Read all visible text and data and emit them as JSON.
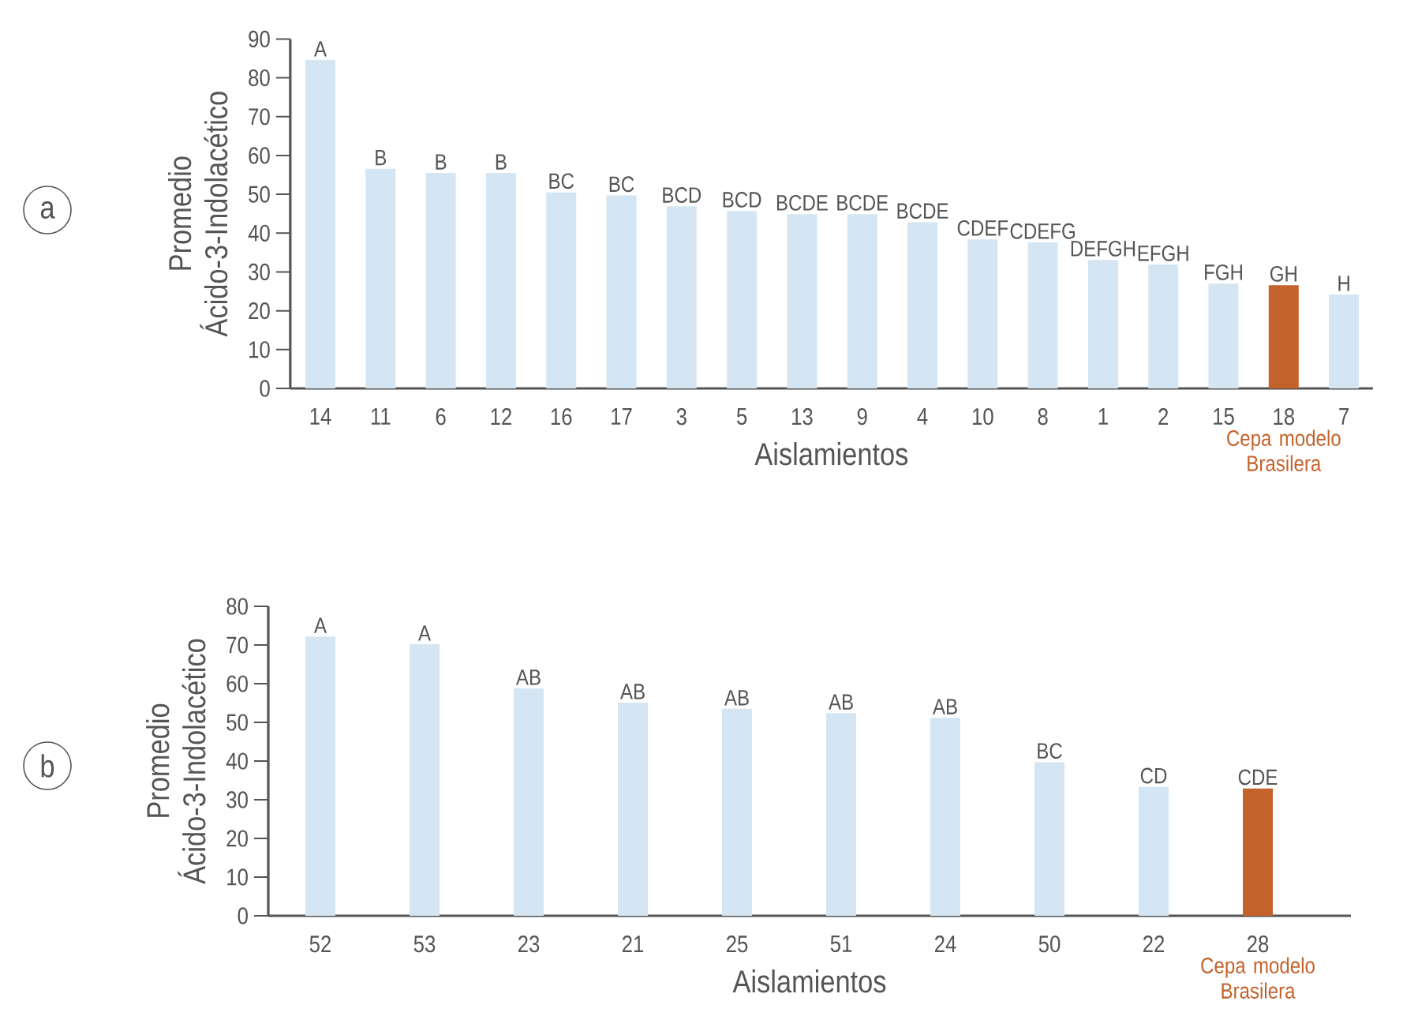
{
  "chart_data": [
    {
      "type": "bar",
      "xlabel": "Aislamientos",
      "ylabel": "Promedio Ácido-3-Indolacético",
      "categories": [
        "14",
        "11",
        "6",
        "12",
        "16",
        "17",
        "3",
        "5",
        "13",
        "9",
        "4",
        "10",
        "8",
        "1",
        "2",
        "15",
        "18",
        "7"
      ],
      "values": [
        84.6,
        56.6,
        55.5,
        55.5,
        50.5,
        49.7,
        46.9,
        45.7,
        44.9,
        44.9,
        42.8,
        38.4,
        37.6,
        33.1,
        31.9,
        27,
        26.6,
        24.2
      ],
      "colors": [
        "#d4e6f3",
        "#d4e6f3",
        "#d4e6f3",
        "#d4e6f3",
        "#d4e6f3",
        "#d4e6f3",
        "#d4e6f3",
        "#d4e6f3",
        "#d4e6f3",
        "#d4e6f3",
        "#d4e6f3",
        "#d4e6f3",
        "#d4e6f3",
        "#d4e6f3",
        "#d4e6f3",
        "#d4e6f3",
        "#c4622b",
        "#d4e6f3"
      ],
      "value_labels": [
        "A",
        "B",
        "B",
        "B",
        "BC",
        "BC",
        "BCD",
        "BCD",
        "BCDE",
        "BCDE",
        "BCDE",
        "CDEF",
        "CDEFG",
        "DEFGH",
        "EFGH",
        "FGH",
        "GH",
        "H"
      ],
      "ylim": [
        0,
        90
      ],
      "yticks": [
        0,
        10,
        20,
        30,
        40,
        50,
        60,
        70,
        80,
        90
      ],
      "grid": false,
      "annotations": [
        "a",
        "Cepa modelo Brasilera"
      ]
    },
    {
      "type": "bar",
      "xlabel": "Aislamientos",
      "ylabel": "Promedio Ácido-3-Indolacético",
      "categories": [
        "52",
        "53",
        "23",
        "21",
        "25",
        "51",
        "24",
        "50",
        "22",
        "28"
      ],
      "values": [
        72.2,
        70.2,
        58.8,
        55.1,
        53.5,
        52.4,
        51.2,
        39.7,
        33.3,
        32.9
      ],
      "colors": [
        "#d4e6f3",
        "#d4e6f3",
        "#d4e6f3",
        "#d4e6f3",
        "#d4e6f3",
        "#d4e6f3",
        "#d4e6f3",
        "#d4e6f3",
        "#d4e6f3",
        "#c4622b"
      ],
      "value_labels": [
        "A",
        "A",
        "AB",
        "AB",
        "AB",
        "AB",
        "AB",
        "BC",
        "CD",
        "CDE"
      ],
      "ylim": [
        0,
        80
      ],
      "yticks": [
        0,
        10,
        20,
        30,
        40,
        50,
        60,
        70,
        80
      ],
      "grid": false,
      "annotations": [
        "b",
        "Cepa modelo Brasilera"
      ]
    }
  ]
}
